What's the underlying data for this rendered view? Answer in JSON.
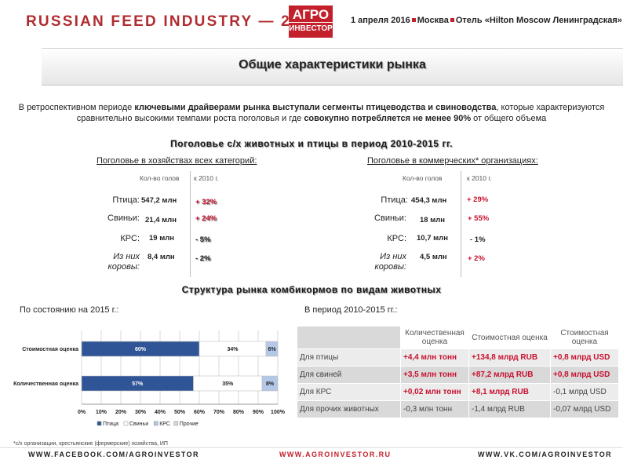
{
  "header": {
    "event_title": "RUSSIAN FEED INDUSTRY — 2016",
    "logo_line1": "АГРО",
    "logo_line2": "ИНВЕСТОР",
    "date": "1 апреля 2016",
    "city": "Москва",
    "venue": "Отель «Hilton Moscow Ленинградская»"
  },
  "slide": {
    "title": "Общие характеристики рынка",
    "intro": {
      "p1": "В  ретроспективном периоде ",
      "b1": "ключевыми драйверами рынка выступали сегменты птицеводства и свиноводства",
      "p2": ", которые характеризуются сравнительно высокими темпами роста поголовья и где ",
      "b2": "совокупно потребляется не менее 90%",
      "p3": " от общего объема"
    },
    "section1_title": "Поголовье с/х животных и птицы в период 2010-2015 гг.",
    "section2_title": "Структура рынка комбикормов по видам животных"
  },
  "livestock_all": {
    "subtitle": "Поголовье в хозяйствах всех категорий:",
    "col_count": "Кол-во голов",
    "col_change": "к 2010 г.",
    "rows": [
      {
        "label": "Птица:",
        "count": "547,2 млн",
        "change": "+ 32%"
      },
      {
        "label": "Свиньи:",
        "count": "21,4 млн",
        "change": "+ 24%"
      },
      {
        "label": "КРС:",
        "count": "19 млн",
        "change": "- 5%"
      },
      {
        "label": "Из них коровы:",
        "count": "8,4 млн",
        "change": "- 2%"
      }
    ]
  },
  "livestock_commercial": {
    "subtitle": "Поголовье в коммерческих* организациях:",
    "col_count": "Кол-во голов",
    "col_change": "к 2010 г.",
    "rows": [
      {
        "label": "Птица:",
        "count": "454,3 млн",
        "change": "+ 29%"
      },
      {
        "label": "Свиньи:",
        "count": "18 млн",
        "change": "+ 55%"
      },
      {
        "label": "КРС:",
        "count": "10,7 млн",
        "change": "- 1%"
      },
      {
        "label": "Из них коровы:",
        "count": "4,5 млн",
        "change": "+ 2%"
      }
    ]
  },
  "chart_caption": "По состоянию на 2015 г.:",
  "table_caption": "В период 2010-2015 гг.:",
  "chart_data": {
    "type": "bar",
    "orientation": "horizontal",
    "stacked": true,
    "percent": true,
    "categories": [
      "Стоимостная оценка",
      "Количественная оценка"
    ],
    "series": [
      {
        "name": "Птица",
        "color": "#2f5597",
        "values": [
          60,
          57
        ]
      },
      {
        "name": "Свиньи",
        "color": "#ffffff",
        "values": [
          34,
          35
        ]
      },
      {
        "name": "КРС",
        "color": "#b4c7e7",
        "values": [
          6,
          8
        ]
      },
      {
        "name": "Прочие",
        "color": "#d9d9d9",
        "values": [
          0,
          0
        ]
      }
    ],
    "data_labels": [
      [
        "60%",
        "34%",
        "6%"
      ],
      [
        "57%",
        "35%",
        "8%"
      ]
    ],
    "xticks": [
      "0%",
      "10%",
      "20%",
      "30%",
      "40%",
      "50%",
      "60%",
      "70%",
      "80%",
      "90%",
      "100%"
    ],
    "xlim": [
      0,
      100
    ],
    "grid": true,
    "legend": "bottom-left"
  },
  "change_table": {
    "headers": [
      "Количественная оценка",
      "Стоимостная оценка",
      "Стоимостная оценка"
    ],
    "rows": [
      {
        "label": "Для птицы",
        "cells": [
          "+4,4 млн тонн",
          "+134,8 млрд RUB",
          "+0,8 млрд USD"
        ]
      },
      {
        "label": "Для свиней",
        "cells": [
          "+3,5 млн тонн",
          "+87,2 млрд RUB",
          "+0,8 млрд USD"
        ]
      },
      {
        "label": "Для КРС",
        "cells": [
          "+0,02  млн тонн",
          "+8,1 млрд RUB",
          "-0,1 млрд USD"
        ]
      },
      {
        "label": "Для прочих животных",
        "cells": [
          "-0,3 млн тонн",
          "-1,4 млрд RUB",
          "-0,07 млрд USD"
        ]
      }
    ]
  },
  "footnote": "*с/х организации, крестьянские (фермерские) хозяйства, ИП",
  "footer": {
    "facebook": "WWW.FACEBOOK.COM/AGROINVESTOR",
    "site": "WWW.AGROINVESTOR.RU",
    "vk": "WWW.VK.COM/AGROINVESTOR"
  },
  "colors": {
    "brand_red": "#c4202c",
    "change_red": "#c8102e",
    "bar_blue": "#2f5597"
  }
}
